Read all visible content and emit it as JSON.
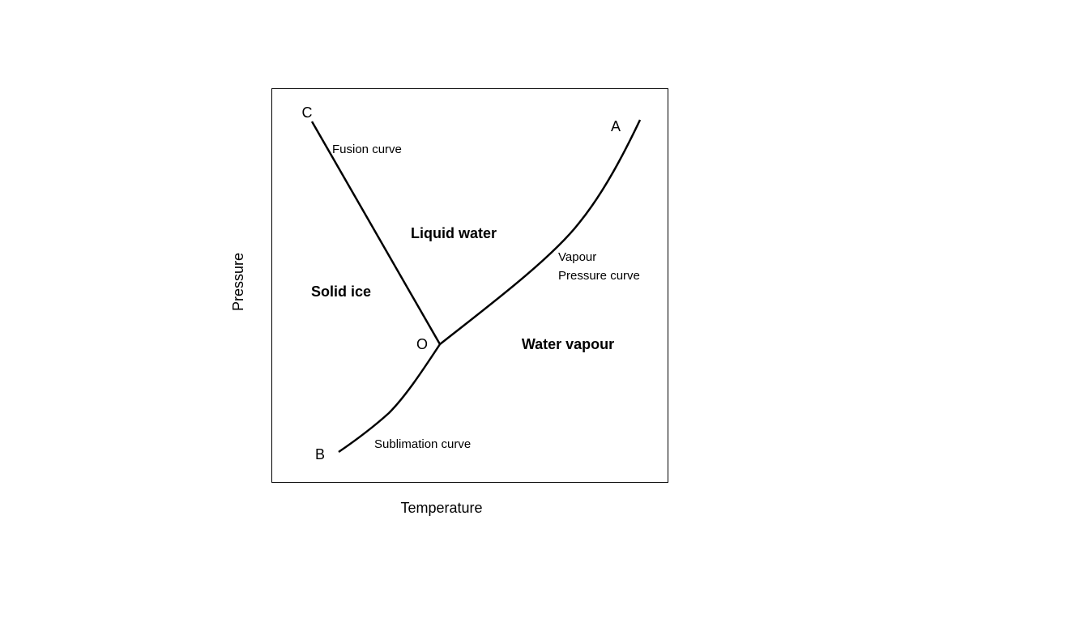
{
  "axes": {
    "x_label": "Temperature",
    "y_label": "Pressure"
  },
  "points": [
    {
      "label": "C"
    },
    {
      "label": "A"
    },
    {
      "label": "O"
    },
    {
      "label": "B"
    }
  ],
  "curves": [
    {
      "label": "Fusion curve"
    },
    {
      "label": "Vapour"
    },
    {
      "label": "Pressure curve"
    },
    {
      "label": "Sublimation curve"
    }
  ],
  "regions": [
    {
      "label": "Liquid water"
    },
    {
      "label": "Solid ice"
    },
    {
      "label": "Water vapour"
    }
  ]
}
